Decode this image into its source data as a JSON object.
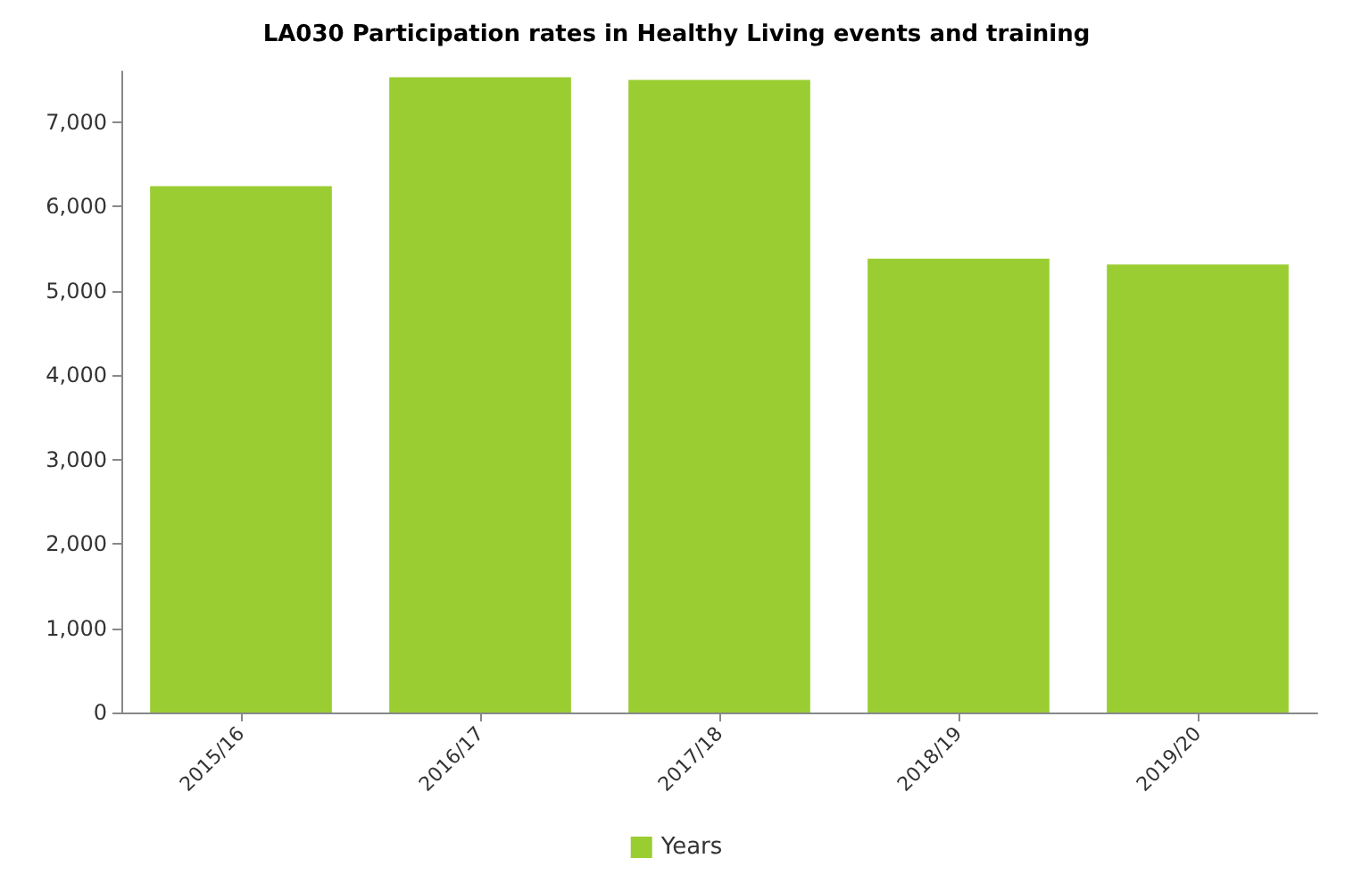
{
  "chart_data": {
    "type": "bar",
    "title": "LA030 Participation rates in Healthy Living events and training",
    "categories": [
      "2015/16",
      "2016/17",
      "2017/18",
      "2018/19",
      "2019/20"
    ],
    "series": [
      {
        "name": "Years",
        "color": "#9acd32",
        "values": [
          6240,
          7530,
          7500,
          5380,
          5310
        ]
      }
    ],
    "ylim": [
      0,
      7600
    ],
    "yticks": [
      0,
      {
        "value": 1000,
        "label": "1,000"
      },
      {
        "value": 2000,
        "label": "2,000"
      },
      {
        "value": 3000,
        "label": "3,000"
      },
      {
        "value": 4000,
        "label": "4,000"
      },
      {
        "value": 5000,
        "label": "5,000"
      },
      {
        "value": 6000,
        "label": "6,000"
      },
      {
        "value": 7000,
        "label": "7,000"
      }
    ],
    "grid": false,
    "legend": "bottom"
  }
}
